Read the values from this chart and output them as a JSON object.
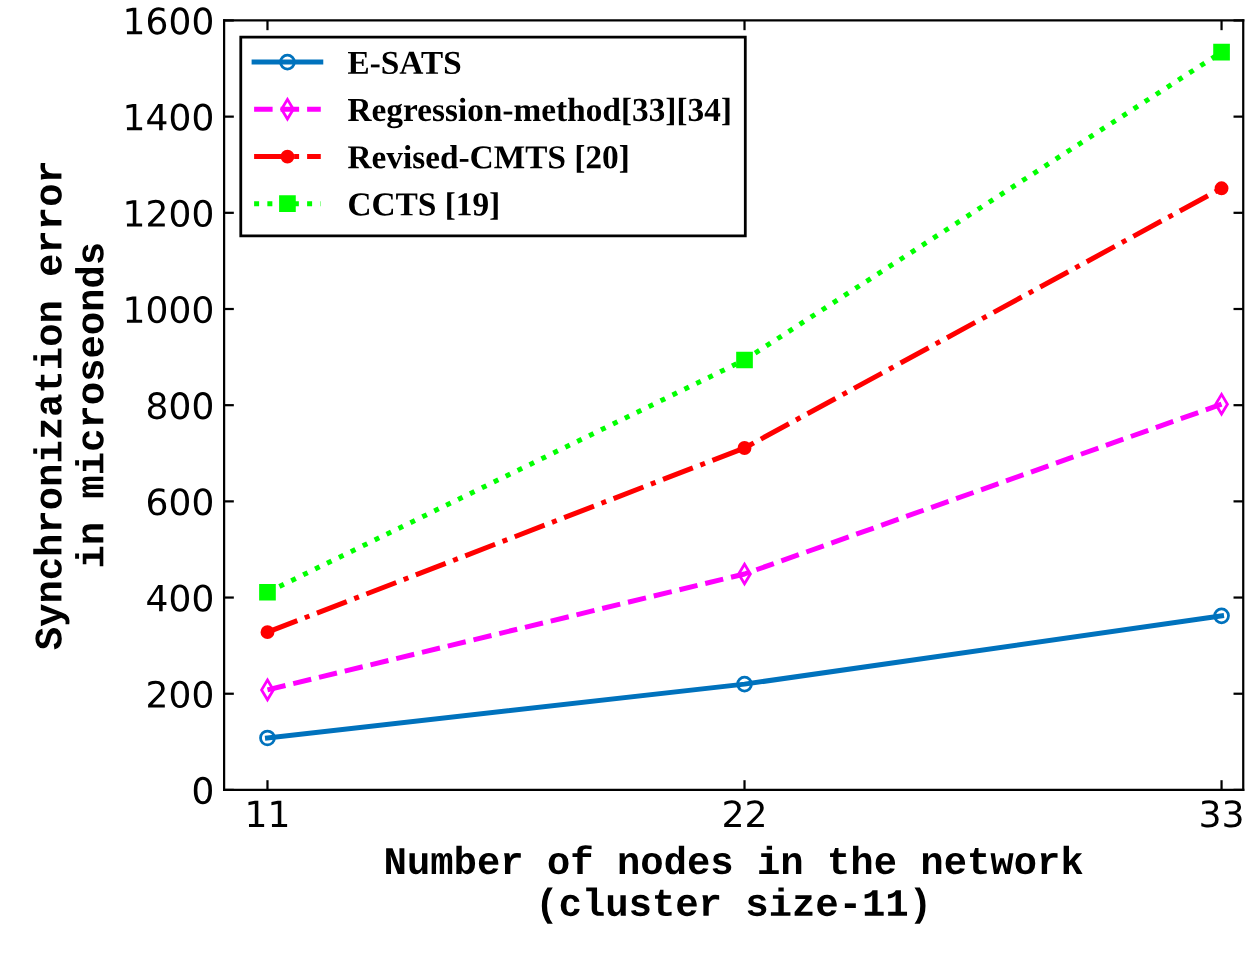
{
  "chart_data": {
    "type": "line",
    "xlabel": "Number of nodes in the network\n(cluster size-11)",
    "ylabel": "Synchronization error\nin microseonds",
    "x": [
      11,
      22,
      33
    ],
    "series": [
      {
        "name": "E-SATS",
        "color": "#0072bd",
        "values": [
          108,
          220,
          362
        ],
        "marker": "circle",
        "line_style": "solid"
      },
      {
        "name": "Regression-method[33][34]",
        "color": "#ff00ff",
        "values": [
          208,
          449,
          802
        ],
        "marker": "diamond",
        "line_style": "dashed"
      },
      {
        "name": "Revised-CMTS [20]",
        "color": "#ff0000",
        "values": [
          328,
          711,
          1251
        ],
        "marker": "point",
        "line_style": "dashdot"
      },
      {
        "name": "CCTS [19]",
        "color": "#00ff00",
        "values": [
          411,
          894,
          1534
        ],
        "marker": "square",
        "line_style": "dotted"
      }
    ],
    "xlim": [
      10,
      33.5
    ],
    "xticks": [
      11,
      22,
      33
    ],
    "ylim": [
      0,
      1600
    ],
    "yticks": [
      0,
      200,
      400,
      600,
      800,
      1000,
      1200,
      1400,
      1600
    ],
    "grid": false,
    "legend": "top left"
  }
}
